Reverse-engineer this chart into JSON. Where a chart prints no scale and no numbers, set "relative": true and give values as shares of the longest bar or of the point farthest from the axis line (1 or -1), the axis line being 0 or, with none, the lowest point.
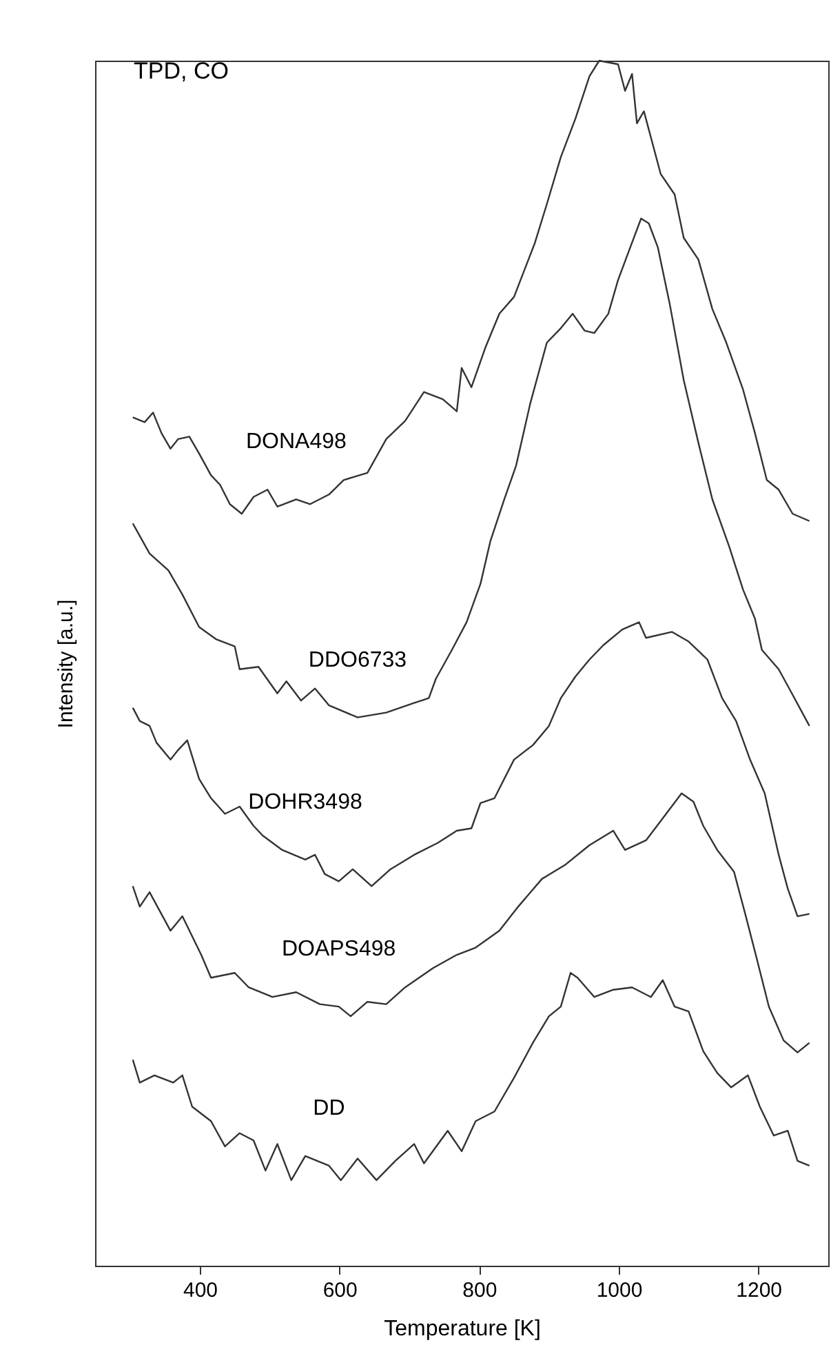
{
  "chart_data": {
    "type": "line",
    "relative": true,
    "xlabel": "Temperature [K]",
    "ylabel": "Intensity [a.u.]",
    "annotations": [
      "TPD, CO"
    ],
    "xlim": [
      250,
      1300
    ],
    "xticks": [
      400,
      600,
      800,
      1000,
      1200
    ],
    "series": [
      {
        "name": "DONA498",
        "color": "#333333",
        "x": [
          304,
          321,
          333,
          345,
          358,
          369,
          385,
          399,
          416,
          429,
          443,
          460,
          477,
          497,
          511,
          538,
          558,
          585,
          606,
          640,
          667,
          694,
          721,
          748,
          768,
          775,
          789,
          809,
          829,
          850,
          880,
          897,
          917,
          938,
          958,
          972,
          999,
          1009,
          1019,
          1026,
          1036,
          1060,
          1080,
          1093,
          1114,
          1134,
          1154,
          1178,
          1195,
          1212,
          1229,
          1249,
          1273
        ],
        "values": [
          0.704,
          0.7,
          0.708,
          0.691,
          0.678,
          0.686,
          0.688,
          0.674,
          0.656,
          0.648,
          0.632,
          0.624,
          0.638,
          0.644,
          0.63,
          0.636,
          0.632,
          0.64,
          0.652,
          0.658,
          0.686,
          0.701,
          0.725,
          0.719,
          0.709,
          0.745,
          0.729,
          0.762,
          0.79,
          0.804,
          0.849,
          0.881,
          0.92,
          0.952,
          0.987,
          1,
          0.997,
          0.975,
          0.989,
          0.948,
          0.958,
          0.906,
          0.889,
          0.853,
          0.835,
          0.794,
          0.766,
          0.727,
          0.691,
          0.652,
          0.644,
          0.624,
          0.618
        ]
      },
      {
        "name": "DDO6733",
        "color": "#333333",
        "x": [
          304,
          328,
          355,
          375,
          399,
          423,
          450,
          457,
          484,
          511,
          524,
          545,
          565,
          585,
          626,
          667,
          707,
          728,
          738,
          761,
          782,
          802,
          816,
          836,
          853,
          873,
          897,
          917,
          934,
          951,
          965,
          985,
          999,
          1019,
          1032,
          1043,
          1056,
          1073,
          1093,
          1114,
          1134,
          1158,
          1178,
          1195,
          1205,
          1229,
          1246,
          1273
        ],
        "values": [
          0.616,
          0.591,
          0.577,
          0.557,
          0.53,
          0.52,
          0.514,
          0.495,
          0.497,
          0.475,
          0.485,
          0.469,
          0.479,
          0.465,
          0.455,
          0.459,
          0.467,
          0.471,
          0.487,
          0.511,
          0.534,
          0.566,
          0.601,
          0.636,
          0.664,
          0.715,
          0.766,
          0.778,
          0.79,
          0.776,
          0.774,
          0.79,
          0.818,
          0.849,
          0.869,
          0.865,
          0.845,
          0.798,
          0.735,
          0.683,
          0.636,
          0.597,
          0.561,
          0.537,
          0.511,
          0.495,
          0.477,
          0.448
        ]
      },
      {
        "name": "DOHR3498",
        "color": "#333333",
        "x": [
          304,
          314,
          328,
          338,
          358,
          369,
          382,
          399,
          416,
          436,
          457,
          477,
          490,
          518,
          551,
          565,
          579,
          599,
          619,
          646,
          673,
          707,
          741,
          768,
          789,
          802,
          822,
          850,
          877,
          900,
          917,
          938,
          958,
          978,
          1005,
          1029,
          1039,
          1076,
          1100,
          1127,
          1148,
          1168,
          1188,
          1209,
          1229,
          1242,
          1256,
          1273
        ],
        "values": [
          0.463,
          0.452,
          0.448,
          0.434,
          0.42,
          0.428,
          0.436,
          0.404,
          0.388,
          0.375,
          0.381,
          0.365,
          0.357,
          0.345,
          0.337,
          0.341,
          0.325,
          0.319,
          0.329,
          0.315,
          0.329,
          0.341,
          0.351,
          0.361,
          0.363,
          0.384,
          0.388,
          0.42,
          0.432,
          0.448,
          0.471,
          0.489,
          0.503,
          0.515,
          0.528,
          0.534,
          0.521,
          0.526,
          0.518,
          0.503,
          0.471,
          0.452,
          0.42,
          0.392,
          0.341,
          0.313,
          0.29,
          0.292
        ]
      },
      {
        "name": "DOAPS498",
        "color": "#333333",
        "x": [
          304,
          314,
          328,
          358,
          375,
          402,
          416,
          450,
          470,
          504,
          538,
          572,
          599,
          616,
          640,
          667,
          694,
          734,
          768,
          795,
          829,
          856,
          890,
          924,
          958,
          992,
          1009,
          1039,
          1060,
          1090,
          1107,
          1121,
          1141,
          1165,
          1182,
          1198,
          1215,
          1236,
          1256,
          1273
        ],
        "values": [
          0.315,
          0.298,
          0.31,
          0.278,
          0.29,
          0.258,
          0.239,
          0.243,
          0.231,
          0.223,
          0.227,
          0.217,
          0.215,
          0.207,
          0.219,
          0.217,
          0.231,
          0.247,
          0.258,
          0.264,
          0.278,
          0.298,
          0.321,
          0.333,
          0.349,
          0.361,
          0.345,
          0.353,
          0.369,
          0.392,
          0.385,
          0.365,
          0.345,
          0.327,
          0.29,
          0.254,
          0.215,
          0.187,
          0.177,
          0.185
        ]
      },
      {
        "name": "DD",
        "color": "#333333",
        "x": [
          304,
          314,
          335,
          362,
          375,
          389,
          416,
          436,
          457,
          477,
          494,
          511,
          531,
          551,
          585,
          602,
          626,
          653,
          680,
          707,
          721,
          755,
          775,
          795,
          822,
          850,
          877,
          900,
          917,
          931,
          941,
          965,
          992,
          1019,
          1046,
          1063,
          1080,
          1100,
          1121,
          1141,
          1161,
          1185,
          1202,
          1222,
          1242,
          1256,
          1273
        ],
        "values": [
          0.171,
          0.152,
          0.158,
          0.152,
          0.158,
          0.132,
          0.12,
          0.099,
          0.11,
          0.104,
          0.079,
          0.101,
          0.071,
          0.091,
          0.083,
          0.071,
          0.089,
          0.071,
          0.087,
          0.101,
          0.085,
          0.112,
          0.095,
          0.12,
          0.128,
          0.156,
          0.185,
          0.207,
          0.215,
          0.243,
          0.239,
          0.223,
          0.229,
          0.231,
          0.223,
          0.237,
          0.215,
          0.211,
          0.178,
          0.16,
          0.148,
          0.158,
          0.132,
          0.108,
          0.112,
          0.087,
          0.083
        ]
      }
    ]
  }
}
